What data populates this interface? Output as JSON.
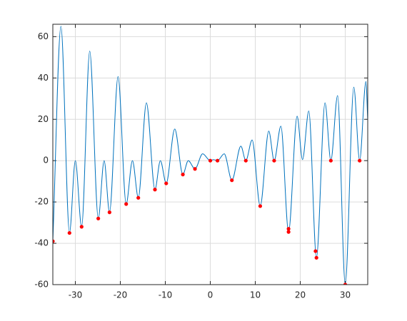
{
  "chart_data": {
    "type": "line",
    "xlim": [
      -35,
      35
    ],
    "ylim": [
      -60,
      66
    ],
    "xticks": [
      -30,
      -20,
      -10,
      0,
      10,
      20,
      30
    ],
    "yticks": [
      -60,
      -40,
      -20,
      0,
      20,
      40,
      60
    ],
    "grid": true,
    "series": [
      {
        "color": "#0072bd",
        "marker": "none",
        "x": [
          -35,
          -33.2,
          -31.3,
          -30,
          -28.6,
          -26.8,
          -24.9,
          -23.6,
          -22.4,
          -20.5,
          -18.7,
          -17.3,
          -16,
          -14.2,
          -12.3,
          -11.1,
          -9.8,
          -7.9,
          -6.1,
          -4.9,
          -3.4,
          -1.7,
          0,
          0.7,
          1.6,
          3.1,
          4.8,
          6.8,
          7.9,
          9.3,
          11.1,
          13,
          14.2,
          15.7,
          17.4,
          19.3,
          20.5,
          21.9,
          23.6,
          25.5,
          26.8,
          28.3,
          30,
          31.9,
          33.2,
          34.6,
          35
        ],
        "values": [
          -39,
          65,
          -35,
          0,
          -32,
          53,
          -28,
          0,
          -25,
          40.7,
          -21,
          0,
          -18,
          28,
          -14,
          0,
          -11,
          15.3,
          -6.7,
          0,
          -4,
          3.3,
          0,
          0.5,
          0,
          3.3,
          -9.5,
          7,
          0,
          10,
          -22,
          14.3,
          0,
          16.7,
          -34.5,
          21.5,
          0.5,
          24,
          -47,
          28,
          0,
          31.5,
          -60,
          35.6,
          0,
          38.3,
          19.5
        ]
      },
      {
        "color": "#ff0000",
        "marker": "dot",
        "x": [
          -35,
          -31.3,
          -28.6,
          -24.9,
          -22.4,
          -18.7,
          -16,
          -12.3,
          -9.8,
          -6.1,
          -3.4,
          0,
          1.6,
          4.8,
          7.9,
          11.1,
          14.2,
          17.4,
          17.4,
          23.4,
          23.6,
          26.8,
          30,
          33.2
        ],
        "values": [
          -39,
          -35,
          -32,
          -28,
          -25,
          -21,
          -18,
          -14,
          -11,
          -6.7,
          -4,
          0,
          0,
          -9.5,
          0,
          -22,
          0,
          -34.5,
          -33,
          -43.8,
          -47,
          0,
          -60,
          0
        ]
      }
    ]
  }
}
